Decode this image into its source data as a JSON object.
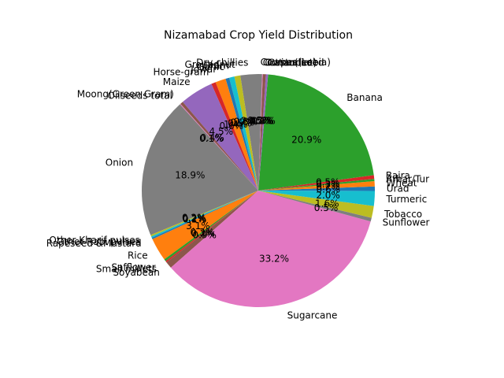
{
  "chart_data": {
    "type": "pie",
    "title": "Nizamabad Crop Yield Distribution",
    "start_angle_deg": 90,
    "direction": "counterclockwise",
    "slices": [
      {
        "label": "Dry chillies",
        "value": 2.4,
        "pct": "2.4%",
        "color": "#7f7f7f"
      },
      {
        "label": "Groundnut",
        "value": 0.8,
        "pct": "0.8%",
        "color": "#bcbd22"
      },
      {
        "label": "Gram",
        "value": 0.7,
        "pct": "0.7%",
        "color": "#17becf"
      },
      {
        "label": "Garlic",
        "value": 0.5,
        "pct": "0.5%",
        "color": "#1f77b4"
      },
      {
        "label": "Jowar",
        "value": 1.4,
        "pct": "1.4%",
        "color": "#ff7f0e"
      },
      {
        "label": "Horse-gram",
        "value": 0.6,
        "pct": "0.6%",
        "color": "#d62728"
      },
      {
        "label": "Maize",
        "value": 4.5,
        "pct": "4.5%",
        "color": "#9467bd"
      },
      {
        "label": "Moong(Green Gram)",
        "value": 0.4,
        "pct": "0.4%",
        "color": "#8c564b"
      },
      {
        "label": "Oilseeds total",
        "value": 0.1,
        "pct": "0.1%",
        "color": "#e377c2"
      },
      {
        "label": "Onion",
        "value": 18.9,
        "pct": "18.9%",
        "color": "#7f7f7f"
      },
      {
        "label": "Other Kharif pulses",
        "value": 0.2,
        "pct": "0.2%",
        "color": "#bcbd22"
      },
      {
        "label": "Other Rabi pulses",
        "value": 0.2,
        "pct": "0.2%",
        "color": "#17becf"
      },
      {
        "label": "Rapeseed &Mustard",
        "value": 0.2,
        "pct": "0.2%",
        "color": "#1f77b4"
      },
      {
        "label": "Rice",
        "value": 3.1,
        "pct": "3.1%",
        "color": "#ff7f0e"
      },
      {
        "label": "Safflower",
        "value": 0.3,
        "pct": "0.3%",
        "color": "#2ca02c"
      },
      {
        "label": "Small millets",
        "value": 0.2,
        "pct": "0.2%",
        "color": "#d62728"
      },
      {
        "label": "Soyabean",
        "value": 0.9,
        "pct": "0.9%",
        "color": "#8c564b"
      },
      {
        "label": "Sugarcane",
        "value": 33.2,
        "pct": "33.2%",
        "color": "#e377c2"
      },
      {
        "label": "Sunflower",
        "value": 0.5,
        "pct": "0.5%",
        "color": "#7f7f7f"
      },
      {
        "label": "Tobacco",
        "value": 1.6,
        "pct": "1.6%",
        "color": "#bcbd22"
      },
      {
        "label": "Turmeric",
        "value": 2.0,
        "pct": "2.0%",
        "color": "#17becf"
      },
      {
        "label": "Urad",
        "value": 0.6,
        "pct": "0.6%",
        "color": "#1f77b4"
      },
      {
        "label": "Wheat",
        "value": 0.7,
        "pct": "0.7%",
        "color": "#ff7f0e"
      },
      {
        "label": "Arhar/Tur",
        "value": 0.3,
        "pct": "0.3%",
        "color": "#2ca02c"
      },
      {
        "label": "Bajra",
        "value": 0.5,
        "pct": "0.5%",
        "color": "#d62728"
      },
      {
        "label": "Banana",
        "value": 20.9,
        "pct": "20.9%",
        "color": "#2ca02c"
      },
      {
        "label": "Castor seed",
        "value": 0.3,
        "pct": "0.3%",
        "color": "#9467bd"
      },
      {
        "label": "Coriander",
        "value": 0.4,
        "pct": "0.4%",
        "color": "#8c564b"
      },
      {
        "label": "Cotton(lint)",
        "value": 0.1,
        "pct": "0.1%",
        "color": "#e377c2"
      },
      {
        "label": "Cowpea(Lobia)",
        "value": 0.5,
        "pct": "0.5%",
        "color": "#7f7f7f"
      }
    ]
  }
}
